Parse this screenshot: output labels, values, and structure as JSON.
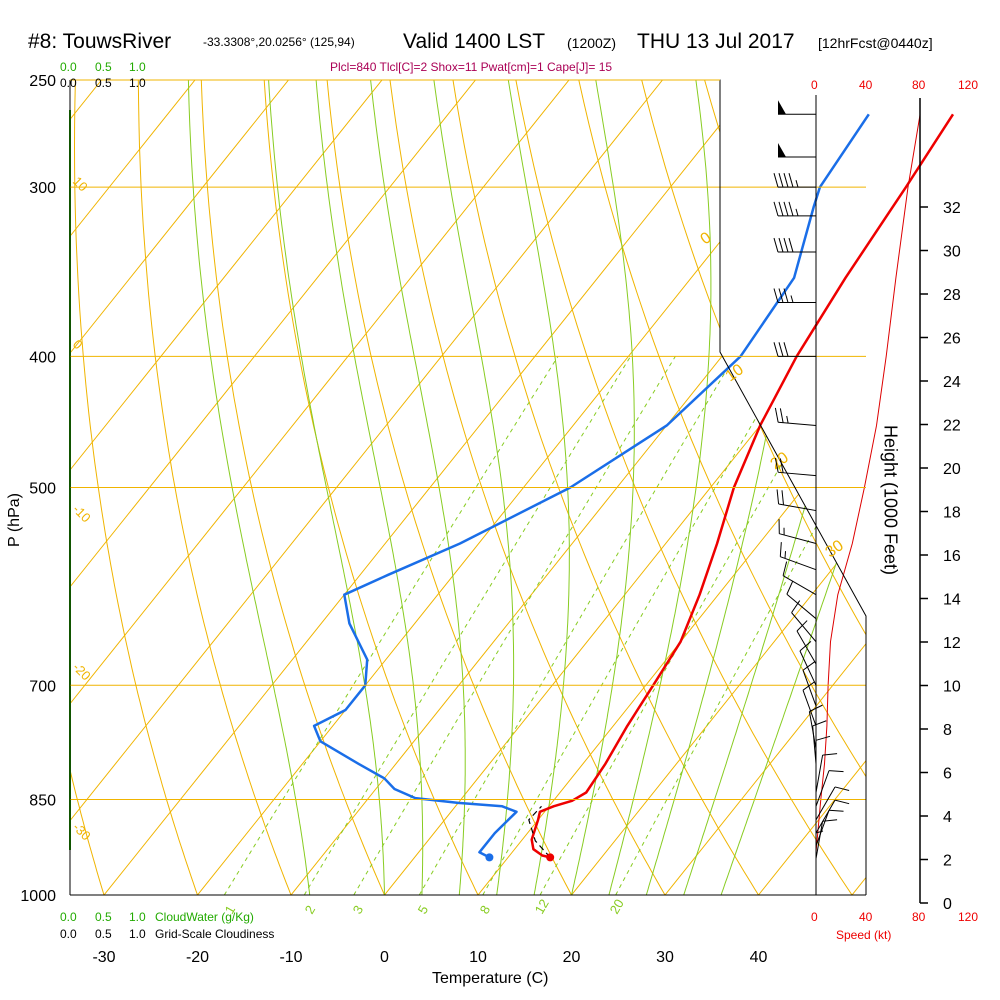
{
  "header": {
    "station": "#8: TouwsRiver",
    "coords": "-33.3308°,20.0256° (125,94)",
    "valid": "Valid 1400 LST",
    "zulu": "(1200Z)",
    "date": "THU 13 Jul 2017",
    "forecast": "[12hrFcst@0440z]",
    "params": "Plcl=840 Tlcl[C]=2 Shox=11 Pwat[cm]=1 Cape[J]= 15"
  },
  "cloud_legend": {
    "top_green": [
      "0.0",
      "0.5",
      "1.0"
    ],
    "top_black": [
      "0.0",
      "0.5",
      "1.0"
    ],
    "bottom_green": [
      "0.0",
      "0.5",
      "1.0"
    ],
    "bottom_green_label": "CloudWater (g/Kg)",
    "bottom_black": [
      "0.0",
      "0.5",
      "1.0"
    ],
    "bottom_black_label": "Grid-Scale Cloudiness"
  },
  "speed_axis": {
    "label": "Speed (kt)",
    "ticks": [
      "0",
      "40",
      "80",
      "120"
    ]
  },
  "colors": {
    "isotherm": "#f0b400",
    "dry_adiabat": "#f0b400",
    "moist_adiabat": "#88cc22",
    "mixing_ratio": "#88cc22",
    "temperature": "#ee0000",
    "dewpoint": "#1a6ee8",
    "cloud_bar": "#22aa00",
    "height_speed_line": "#dd0000"
  },
  "chart_data": {
    "type": "line",
    "subtype": "skew-T log-P sounding",
    "xlabel": "Temperature (C)",
    "ylabel": "P (hPa)",
    "y2label": "Height (1000 Feet)",
    "xlim": [
      -35,
      36
    ],
    "ylim": [
      1000,
      250
    ],
    "x_ticks": [
      -30,
      -20,
      -10,
      0,
      10,
      20,
      30,
      40
    ],
    "y_ticks": [
      250,
      300,
      400,
      500,
      700,
      850,
      1000
    ],
    "height_ticks": [
      0,
      2,
      4,
      6,
      8,
      10,
      12,
      14,
      16,
      18,
      20,
      22,
      24,
      26,
      28,
      30,
      32
    ],
    "isotherm_labels": [
      "0",
      "10",
      "20",
      "30"
    ],
    "dry_adiabat_labels": [
      "10",
      "0",
      "-10",
      "-20",
      "-30"
    ],
    "mixing_ratio_labels": [
      "1",
      "2",
      "3",
      "5",
      "8",
      "12",
      "20"
    ],
    "series": [
      {
        "name": "Temperature",
        "points": [
          [
            14.5,
            938
          ],
          [
            13.5,
            935
          ],
          [
            12,
            925
          ],
          [
            11,
            910
          ],
          [
            10,
            880
          ],
          [
            9.5,
            868
          ],
          [
            10.5,
            860
          ],
          [
            12,
            852
          ],
          [
            12.8,
            840
          ],
          [
            12.4,
            800
          ],
          [
            11.5,
            750
          ],
          [
            10.8,
            700
          ],
          [
            10,
            650
          ],
          [
            8,
            600
          ],
          [
            5.5,
            550
          ],
          [
            2.5,
            500
          ],
          [
            0,
            450
          ],
          [
            -2,
            400
          ],
          [
            -3.5,
            350
          ],
          [
            -4.8,
            300
          ],
          [
            -6,
            265
          ]
        ]
      },
      {
        "name": "Dewpoint",
        "points": [
          [
            8,
            938
          ],
          [
            6.5,
            930
          ],
          [
            6.5,
            900
          ],
          [
            7,
            868
          ],
          [
            5,
            860
          ],
          [
            0,
            855
          ],
          [
            -5,
            848
          ],
          [
            -8,
            835
          ],
          [
            -10,
            820
          ],
          [
            -14,
            800
          ],
          [
            -20,
            770
          ],
          [
            -22,
            750
          ],
          [
            -20,
            730
          ],
          [
            -20,
            700
          ],
          [
            -22,
            670
          ],
          [
            -27,
            630
          ],
          [
            -30,
            600
          ],
          [
            -27,
            580
          ],
          [
            -22,
            550
          ],
          [
            -15,
            500
          ],
          [
            -10,
            450
          ],
          [
            -8,
            400
          ],
          [
            -9,
            350
          ],
          [
            -13,
            310
          ],
          [
            -14,
            300
          ],
          [
            -15,
            265
          ]
        ]
      },
      {
        "name": "Parcel",
        "points": [
          [
            14.5,
            938
          ],
          [
            11.5,
            912
          ],
          [
            9,
            880
          ],
          [
            9.2,
            860
          ]
        ]
      }
    ],
    "surface_temperature_point": [
      14.5,
      938
    ],
    "surface_dewpoint_point": [
      8,
      938
    ],
    "height_speed_profile": [
      [
        0,
        930
      ],
      [
        4,
        850
      ],
      [
        7,
        800
      ],
      [
        9,
        750
      ],
      [
        10,
        700
      ],
      [
        12,
        650
      ],
      [
        18,
        600
      ],
      [
        30,
        550
      ],
      [
        40,
        500
      ],
      [
        50,
        450
      ],
      [
        58,
        400
      ],
      [
        66,
        350
      ],
      [
        76,
        300
      ],
      [
        86,
        265
      ]
    ],
    "wind_barbs": [
      {
        "p": 265,
        "dir": 270,
        "spd": 50
      },
      {
        "p": 285,
        "dir": 270,
        "spd": 50
      },
      {
        "p": 300,
        "dir": 270,
        "spd": 45
      },
      {
        "p": 315,
        "dir": 270,
        "spd": 45
      },
      {
        "p": 335,
        "dir": 270,
        "spd": 40
      },
      {
        "p": 365,
        "dir": 270,
        "spd": 35
      },
      {
        "p": 400,
        "dir": 270,
        "spd": 30
      },
      {
        "p": 450,
        "dir": 275,
        "spd": 25
      },
      {
        "p": 490,
        "dir": 275,
        "spd": 20
      },
      {
        "p": 520,
        "dir": 280,
        "spd": 20
      },
      {
        "p": 550,
        "dir": 285,
        "spd": 15
      },
      {
        "p": 575,
        "dir": 290,
        "spd": 15
      },
      {
        "p": 600,
        "dir": 300,
        "spd": 10
      },
      {
        "p": 625,
        "dir": 310,
        "spd": 10
      },
      {
        "p": 650,
        "dir": 320,
        "spd": 10
      },
      {
        "p": 675,
        "dir": 330,
        "spd": 10
      },
      {
        "p": 700,
        "dir": 335,
        "spd": 10
      },
      {
        "p": 725,
        "dir": 340,
        "spd": 10
      },
      {
        "p": 750,
        "dir": 340,
        "spd": 10
      },
      {
        "p": 780,
        "dir": 350,
        "spd": 10
      },
      {
        "p": 800,
        "dir": 355,
        "spd": 10
      },
      {
        "p": 820,
        "dir": 360,
        "spd": 10
      },
      {
        "p": 840,
        "dir": 10,
        "spd": 10
      },
      {
        "p": 860,
        "dir": 20,
        "spd": 10
      },
      {
        "p": 880,
        "dir": 30,
        "spd": 10
      },
      {
        "p": 900,
        "dir": 30,
        "spd": 10
      },
      {
        "p": 920,
        "dir": 20,
        "spd": 10
      },
      {
        "p": 940,
        "dir": 10,
        "spd": 10
      },
      {
        "p": 960,
        "dir": 360,
        "spd": 5
      }
    ]
  }
}
